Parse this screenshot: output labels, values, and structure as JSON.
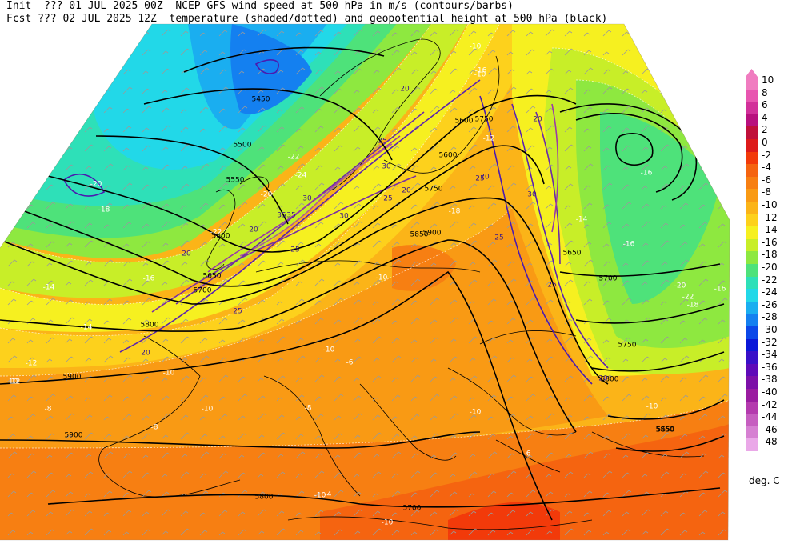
{
  "header": {
    "line1": "Init  ??? 01 JUL 2025 00Z  NCEP GFS wind speed at 500 hPa in m/s (contours/barbs)",
    "line2": "Fcst ??? 02 JUL 2025 12Z  temperature (shaded/dotted) and geopotential height at 500 hPa (black)"
  },
  "legend": {
    "units": "deg. C",
    "entries": [
      {
        "label": "10",
        "color": "#f07cc0"
      },
      {
        "label": "8",
        "color": "#e855b0"
      },
      {
        "label": "6",
        "color": "#d2309a"
      },
      {
        "label": "4",
        "color": "#b8107e"
      },
      {
        "label": "2",
        "color": "#c0103a"
      },
      {
        "label": "0",
        "color": "#dd1a1a"
      },
      {
        "label": "-2",
        "color": "#f23a0a"
      },
      {
        "label": "-4",
        "color": "#f56410"
      },
      {
        "label": "-6",
        "color": "#f77f12"
      },
      {
        "label": "-8",
        "color": "#f99a14"
      },
      {
        "label": "-10",
        "color": "#fbb418"
      },
      {
        "label": "-12",
        "color": "#fdd11c"
      },
      {
        "label": "-14",
        "color": "#f6f020"
      },
      {
        "label": "-16",
        "color": "#c8ee28"
      },
      {
        "label": "-18",
        "color": "#8ee840"
      },
      {
        "label": "-20",
        "color": "#4ee27a"
      },
      {
        "label": "-22",
        "color": "#2ee0b8"
      },
      {
        "label": "-24",
        "color": "#22d8e8"
      },
      {
        "label": "-26",
        "color": "#1aaef0"
      },
      {
        "label": "-28",
        "color": "#1480f0"
      },
      {
        "label": "-30",
        "color": "#0c48e8"
      },
      {
        "label": "-32",
        "color": "#0a18d8"
      },
      {
        "label": "-34",
        "color": "#3810c8"
      },
      {
        "label": "-36",
        "color": "#5e0ab8"
      },
      {
        "label": "-38",
        "color": "#7c10a8"
      },
      {
        "label": "-40",
        "color": "#9a1ca0"
      },
      {
        "label": "-42",
        "color": "#b43aae"
      },
      {
        "label": "-44",
        "color": "#c65ec0"
      },
      {
        "label": "-46",
        "color": "#d680d2"
      },
      {
        "label": "-48",
        "color": "#eaa8e8"
      }
    ]
  },
  "map": {
    "height_labels": [
      "5450",
      "5500",
      "5550",
      "5600",
      "5650",
      "5700",
      "5750",
      "5800",
      "5850",
      "5900",
      "5600",
      "5650",
      "5700",
      "5750",
      "5800",
      "5850",
      "5900",
      "5800",
      "5750",
      "5700",
      "5650",
      "5600",
      "5900"
    ],
    "wind_labels": [
      "20",
      "25",
      "30",
      "35",
      "30",
      "25",
      "20",
      "25",
      "20",
      "25",
      "30",
      "20",
      "25",
      "20",
      "20",
      "25",
      "20",
      "30",
      "35",
      "25",
      "20"
    ],
    "temp_labels": [
      "-10",
      "-10",
      "-12",
      "-14",
      "-14",
      "-16",
      "-18",
      "-20",
      "-22",
      "-24",
      "-22",
      "-20",
      "-18",
      "-16",
      "-14",
      "-12",
      "-10",
      "-10",
      "-8",
      "-8",
      "-10",
      "-10",
      "-6",
      "-10",
      "-8",
      "-10",
      "-10",
      "-4",
      "-6",
      "-10",
      "-16",
      "-16",
      "-20",
      "-22",
      "-18",
      "-16",
      "-12",
      "-10"
    ]
  }
}
